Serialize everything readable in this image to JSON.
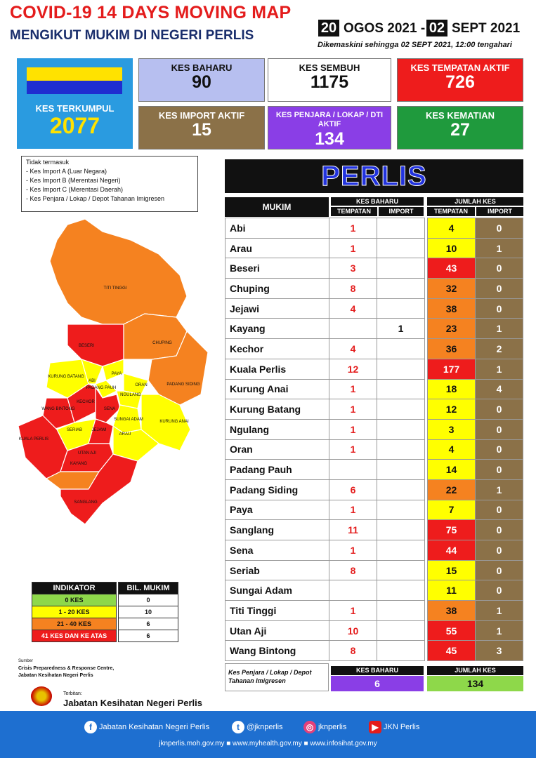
{
  "header": {
    "title": "COVID-19 14 DAYS MOVING MAP",
    "subtitle": "MENGIKUT MUKIM DI NEGERI PERLIS",
    "date_from_day": "20",
    "date_from_rest": "OGOS 2021 -",
    "date_to_day": "02",
    "date_to_rest": "SEPT 2021",
    "updated": "Dikemaskini sehingga  02 SEPT  2021, 12:00 tengahari"
  },
  "summary": {
    "cumulative_label": "KES TERKUMPUL",
    "cumulative_value": "2077",
    "cards": [
      {
        "label": "KES BAHARU",
        "value": "90",
        "bg": "#b7bff0",
        "color": "#111"
      },
      {
        "label": "KES SEMBUH",
        "value": "1175",
        "bg": "#ffffff",
        "color": "#111"
      },
      {
        "label": "KES TEMPATAN AKTIF",
        "value": "726",
        "bg": "#ee1c1c",
        "color": "#ffffff"
      },
      {
        "label": "KES IMPORT AKTIF",
        "value": "15",
        "bg": "#8b7148",
        "color": "#ffffff"
      },
      {
        "label": "KES PENJARA / LOKAP / DTI AKTIF",
        "value": "134",
        "bg": "#8a3ee6",
        "color": "#ffffff"
      },
      {
        "label": "KES KEMATIAN",
        "value": "27",
        "bg": "#1f9a3d",
        "color": "#ffffff"
      }
    ]
  },
  "notes": {
    "title": "Tidak termasuk",
    "items": [
      "- Kes Import A (Luar Negara)",
      "- Kes Import B (Merentasi Negeri)",
      "- Kes Import C (Merentasi Daerah)",
      "- Kes Penjara / Lokap / Depot Tahanan Imigresen"
    ]
  },
  "state_name": "PERLIS",
  "table": {
    "col_mukim": "MUKIM",
    "col_kes_baharu": "KES BAHARU",
    "col_jumlah": "JUMLAH KES",
    "col_tempatan": "TEMPATAN",
    "col_import": "IMPORT",
    "rows": [
      {
        "mukim": "Abi",
        "kb_t": "1",
        "kb_i": "",
        "jk_t": "4",
        "jk_i": "0",
        "lvl": "y"
      },
      {
        "mukim": "Arau",
        "kb_t": "1",
        "kb_i": "",
        "jk_t": "10",
        "jk_i": "1",
        "lvl": "y"
      },
      {
        "mukim": "Beseri",
        "kb_t": "3",
        "kb_i": "",
        "jk_t": "43",
        "jk_i": "0",
        "lvl": "r"
      },
      {
        "mukim": "Chuping",
        "kb_t": "8",
        "kb_i": "",
        "jk_t": "32",
        "jk_i": "0",
        "lvl": "o"
      },
      {
        "mukim": "Jejawi",
        "kb_t": "4",
        "kb_i": "",
        "jk_t": "38",
        "jk_i": "0",
        "lvl": "o"
      },
      {
        "mukim": "Kayang",
        "kb_t": "",
        "kb_i": "1",
        "jk_t": "23",
        "jk_i": "1",
        "lvl": "o"
      },
      {
        "mukim": "Kechor",
        "kb_t": "4",
        "kb_i": "",
        "jk_t": "36",
        "jk_i": "2",
        "lvl": "o"
      },
      {
        "mukim": "Kuala Perlis",
        "kb_t": "12",
        "kb_i": "",
        "jk_t": "177",
        "jk_i": "1",
        "lvl": "r"
      },
      {
        "mukim": "Kurung Anai",
        "kb_t": "1",
        "kb_i": "",
        "jk_t": "18",
        "jk_i": "4",
        "lvl": "y"
      },
      {
        "mukim": "Kurung Batang",
        "kb_t": "1",
        "kb_i": "",
        "jk_t": "12",
        "jk_i": "0",
        "lvl": "y"
      },
      {
        "mukim": "Ngulang",
        "kb_t": "1",
        "kb_i": "",
        "jk_t": "3",
        "jk_i": "0",
        "lvl": "y"
      },
      {
        "mukim": "Oran",
        "kb_t": "1",
        "kb_i": "",
        "jk_t": "4",
        "jk_i": "0",
        "lvl": "y"
      },
      {
        "mukim": "Padang Pauh",
        "kb_t": "",
        "kb_i": "",
        "jk_t": "14",
        "jk_i": "0",
        "lvl": "y"
      },
      {
        "mukim": "Padang Siding",
        "kb_t": "6",
        "kb_i": "",
        "jk_t": "22",
        "jk_i": "1",
        "lvl": "o"
      },
      {
        "mukim": "Paya",
        "kb_t": "1",
        "kb_i": "",
        "jk_t": "7",
        "jk_i": "0",
        "lvl": "y"
      },
      {
        "mukim": "Sanglang",
        "kb_t": "11",
        "kb_i": "",
        "jk_t": "75",
        "jk_i": "0",
        "lvl": "r"
      },
      {
        "mukim": "Sena",
        "kb_t": "1",
        "kb_i": "",
        "jk_t": "44",
        "jk_i": "0",
        "lvl": "r"
      },
      {
        "mukim": "Seriab",
        "kb_t": "8",
        "kb_i": "",
        "jk_t": "15",
        "jk_i": "0",
        "lvl": "y"
      },
      {
        "mukim": "Sungai Adam",
        "kb_t": "",
        "kb_i": "",
        "jk_t": "11",
        "jk_i": "0",
        "lvl": "y"
      },
      {
        "mukim": "Titi Tinggi",
        "kb_t": "1",
        "kb_i": "",
        "jk_t": "38",
        "jk_i": "1",
        "lvl": "o"
      },
      {
        "mukim": "Utan Aji",
        "kb_t": "10",
        "kb_i": "",
        "jk_t": "55",
        "jk_i": "1",
        "lvl": "r"
      },
      {
        "mukim": "Wang Bintong",
        "kb_t": "8",
        "kb_i": "",
        "jk_t": "45",
        "jk_i": "3",
        "lvl": "r"
      }
    ]
  },
  "prison": {
    "label": "Kes Penjara / Lokap / Depot Tahanan Imigresen",
    "baharu_label": "KES BAHARU",
    "baharu_value": "6",
    "jumlah_label": "JUMLAH KES",
    "jumlah_value": "134"
  },
  "legend": {
    "col1": "INDIKATOR",
    "col2": "BIL. MUKIM",
    "rows": [
      {
        "label": "0 KES",
        "count": "0",
        "color": "#8ed84a"
      },
      {
        "label": "1 - 20 KES",
        "count": "10",
        "color": "#ffff00"
      },
      {
        "label": "21 - 40 KES",
        "count": "6",
        "color": "#f58220"
      },
      {
        "label": "41 KES DAN KE ATAS",
        "count": "6",
        "color": "#ee1c1c"
      }
    ]
  },
  "map_labels": [
    "TITI TINGGI",
    "BESERI",
    "CHUPING",
    "PAYA",
    "KURUNG BATANG",
    "ABI",
    "PADANG PAUH",
    "ORAN",
    "NGULANG",
    "PADANG SIDING",
    "WANG BINTONG",
    "KECHOR",
    "SENA",
    "SUNGAI ADAM",
    "KURUNG ANAI",
    "SERIAB",
    "JEJAWI",
    "KUALA PERLIS",
    "UTAN AJI",
    "ARAU",
    "KAYANG",
    "SANGLANG"
  ],
  "source": {
    "title": "Sumber",
    "line1": "Crisis Preparedness & Response Centre,",
    "line2": "Jabatan Kesihatan Negeri Perlis",
    "published_by": "Terbitan:",
    "publisher": "Jabatan Kesihatan Negeri Perlis"
  },
  "footer": {
    "facebook": "Jabatan Kesihatan Negeri Perlis",
    "twitter": "@jknperlis",
    "instagram": "jknperlis",
    "youtube": "JKN Perlis",
    "urls": "jknperlis.moh.gov.my  ■ www.myhealth.gov.my  ■ www.infosihat.gov.my"
  },
  "colors": {
    "yellow": "#ffff00",
    "orange": "#f58220",
    "red": "#ee1c1c",
    "green": "#8ed84a",
    "brown": "#8b7148"
  }
}
